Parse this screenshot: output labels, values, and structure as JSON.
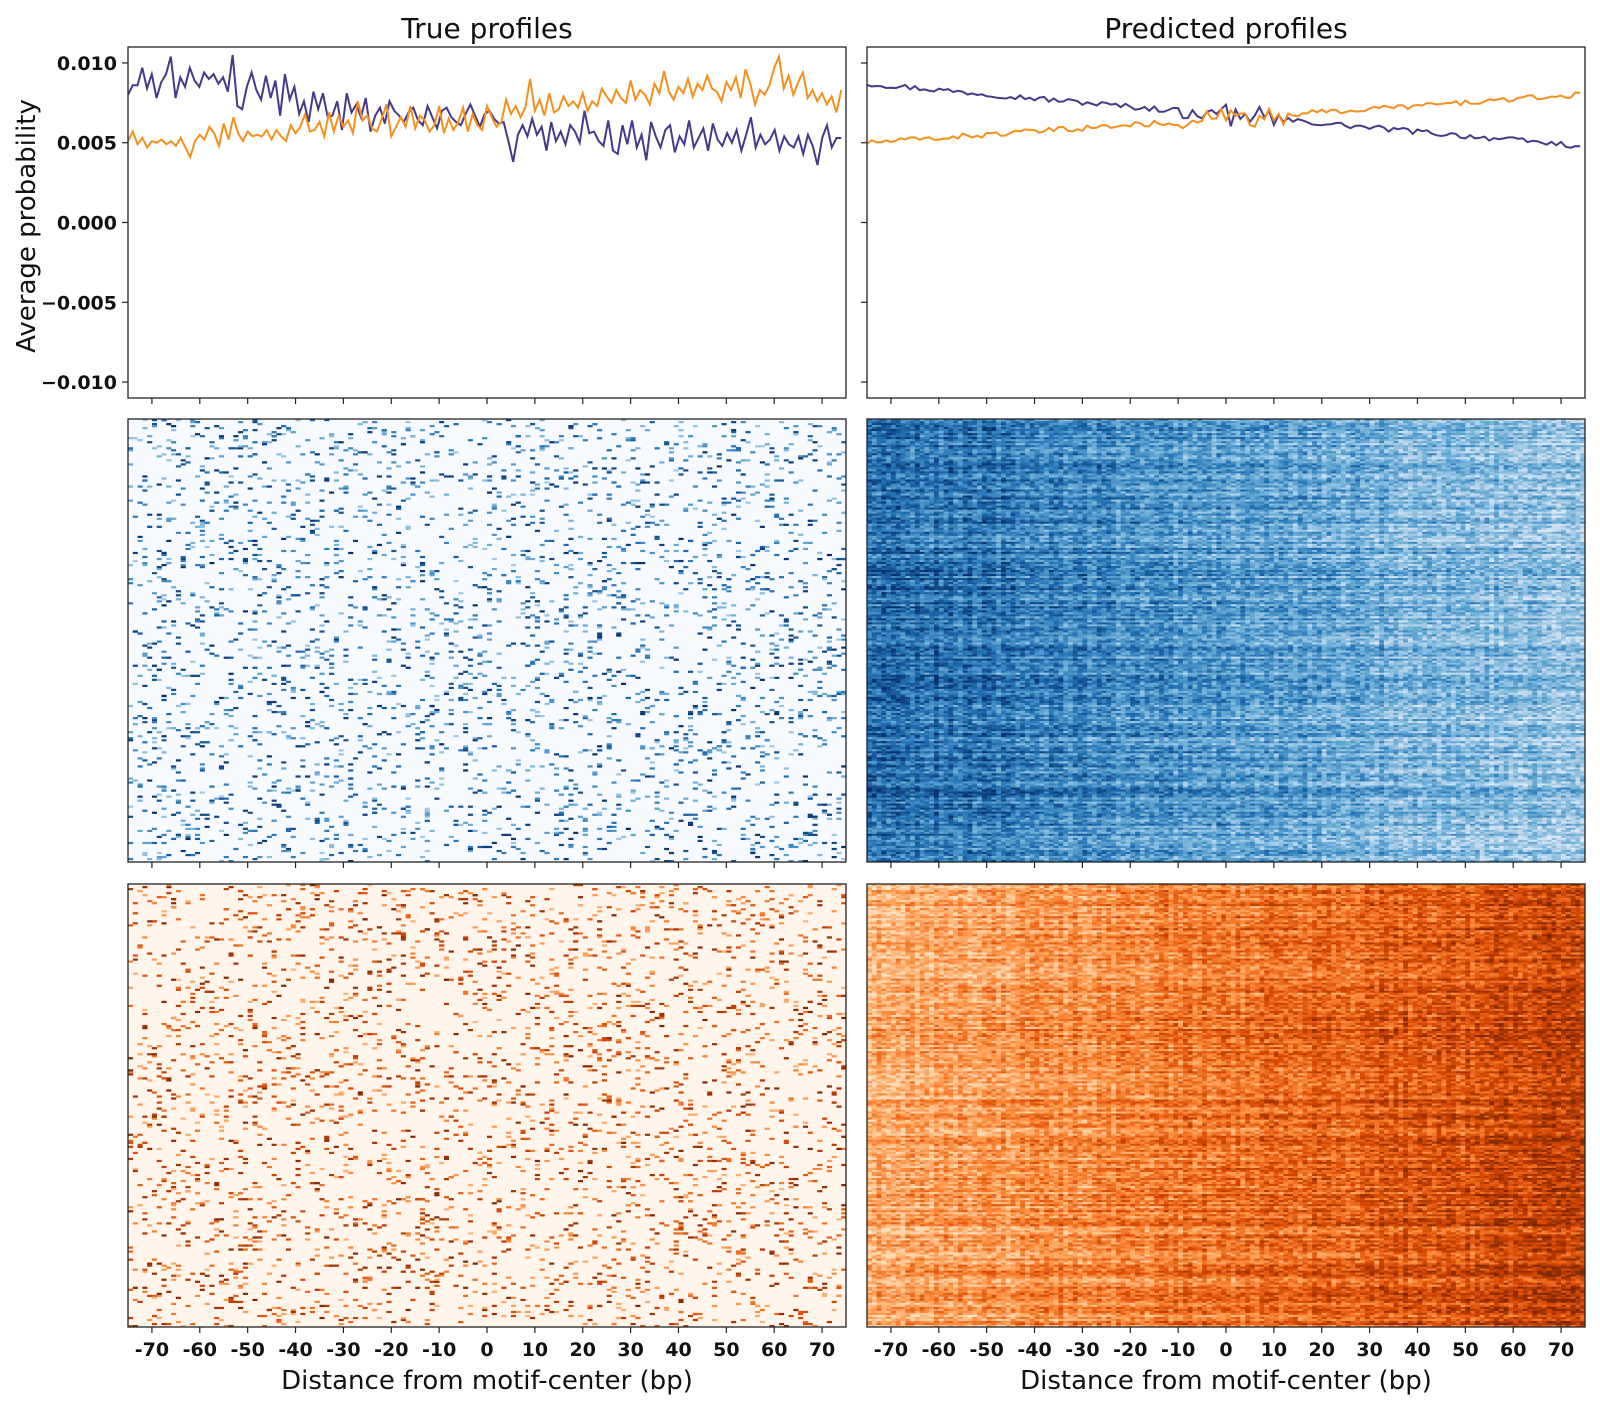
{
  "chart_data": [
    {
      "type": "line",
      "panel": "top-left",
      "title": "True profiles",
      "ylabel": "Average probability",
      "xlim": [
        -75,
        75
      ],
      "ylim": [
        -0.011,
        0.011
      ],
      "yticks": [
        0.01,
        0.005,
        0.0,
        -0.005,
        -0.01
      ],
      "ytick_labels": [
        "0.010",
        "0.005",
        "0.000",
        "−0.005",
        "−0.010"
      ],
      "x_start": -75,
      "series": [
        {
          "color": "#46388a",
          "values": [
            0.008,
            0.0086,
            0.0086,
            0.0097,
            0.0084,
            0.0093,
            0.0078,
            0.0088,
            0.0093,
            0.0104,
            0.0078,
            0.0091,
            0.0085,
            0.0097,
            0.0089,
            0.0085,
            0.0094,
            0.009,
            0.0093,
            0.0087,
            0.0091,
            0.0082,
            0.0105,
            0.0073,
            0.0071,
            0.0085,
            0.0094,
            0.0083,
            0.0077,
            0.0092,
            0.0078,
            0.0089,
            0.0067,
            0.0093,
            0.0077,
            0.0085,
            0.0068,
            0.0076,
            0.0063,
            0.0082,
            0.0071,
            0.0081,
            0.0066,
            0.0067,
            0.0076,
            0.0058,
            0.0081,
            0.0069,
            0.0074,
            0.0066,
            0.0078,
            0.0057,
            0.0067,
            0.0072,
            0.0062,
            0.0076,
            0.007,
            0.0067,
            0.0063,
            0.0069,
            0.0072,
            0.0064,
            0.0061,
            0.0073,
            0.0066,
            0.0059,
            0.007,
            0.0072,
            0.0066,
            0.0063,
            0.0061,
            0.0068,
            0.0074,
            0.0067,
            0.006,
            0.0068,
            0.007,
            0.0065,
            0.0062,
            0.0063,
            0.0051,
            0.0038,
            0.0055,
            0.0061,
            0.0054,
            0.0065,
            0.0055,
            0.006,
            0.0045,
            0.0063,
            0.0051,
            0.0057,
            0.0049,
            0.0061,
            0.0057,
            0.005,
            0.007,
            0.0056,
            0.0057,
            0.0051,
            0.0048,
            0.0064,
            0.0045,
            0.0043,
            0.0061,
            0.0049,
            0.0064,
            0.0047,
            0.0055,
            0.0039,
            0.0063,
            0.0054,
            0.0047,
            0.0058,
            0.0061,
            0.0044,
            0.0054,
            0.0049,
            0.0064,
            0.0047,
            0.0053,
            0.0059,
            0.0045,
            0.0062,
            0.0052,
            0.0048,
            0.0056,
            0.005,
            0.0058,
            0.0045,
            0.0055,
            0.0066,
            0.0047,
            0.0055,
            0.0049,
            0.0052,
            0.0058,
            0.0045,
            0.0054,
            0.0049,
            0.0047,
            0.0054,
            0.0043,
            0.0055,
            0.0048,
            0.0036,
            0.0053,
            0.0061,
            0.0047,
            0.0053,
            0.0053
          ]
        },
        {
          "color": "#f5901e",
          "values": [
            0.0051,
            0.0057,
            0.0049,
            0.0053,
            0.0047,
            0.0051,
            0.005,
            0.0052,
            0.0049,
            0.0051,
            0.0048,
            0.0053,
            0.0047,
            0.0041,
            0.0051,
            0.0055,
            0.0052,
            0.006,
            0.0056,
            0.0048,
            0.0062,
            0.0052,
            0.0066,
            0.0056,
            0.0051,
            0.0057,
            0.0054,
            0.0055,
            0.0054,
            0.0058,
            0.0052,
            0.0058,
            0.0054,
            0.0051,
            0.0061,
            0.0056,
            0.006,
            0.0068,
            0.0057,
            0.0058,
            0.0063,
            0.0054,
            0.0069,
            0.0057,
            0.0067,
            0.006,
            0.0064,
            0.0056,
            0.0076,
            0.0064,
            0.0067,
            0.0059,
            0.0057,
            0.0065,
            0.0074,
            0.0054,
            0.006,
            0.0066,
            0.006,
            0.0073,
            0.0059,
            0.0067,
            0.0064,
            0.0057,
            0.0061,
            0.0073,
            0.0056,
            0.0065,
            0.0058,
            0.0063,
            0.0072,
            0.0057,
            0.0068,
            0.0061,
            0.0058,
            0.0073,
            0.0066,
            0.006,
            0.0063,
            0.0077,
            0.0068,
            0.0073,
            0.0066,
            0.0072,
            0.009,
            0.007,
            0.0077,
            0.0067,
            0.0081,
            0.0069,
            0.0071,
            0.0079,
            0.0073,
            0.0076,
            0.0072,
            0.0081,
            0.007,
            0.0076,
            0.0073,
            0.0084,
            0.0079,
            0.0075,
            0.0083,
            0.0078,
            0.0075,
            0.0089,
            0.0077,
            0.0083,
            0.008,
            0.0074,
            0.0087,
            0.0081,
            0.0095,
            0.0082,
            0.0077,
            0.0085,
            0.0081,
            0.009,
            0.0079,
            0.0087,
            0.0083,
            0.0092,
            0.0084,
            0.0082,
            0.0076,
            0.0088,
            0.0083,
            0.0091,
            0.0078,
            0.0096,
            0.0087,
            0.0074,
            0.0083,
            0.008,
            0.0086,
            0.0097,
            0.0104,
            0.0084,
            0.0092,
            0.008,
            0.0088,
            0.0094,
            0.0078,
            0.0083,
            0.0076,
            0.0081,
            0.0074,
            0.0079,
            0.0069,
            0.0083
          ]
        }
      ]
    },
    {
      "type": "line",
      "panel": "top-right",
      "title": "Predicted profiles",
      "xlim": [
        -75,
        75
      ],
      "ylim": [
        -0.011,
        0.011
      ],
      "x_start": -75,
      "series": [
        {
          "color": "#46388a",
          "trend": {
            "start": 0.0087,
            "end": 0.0048
          }
        },
        {
          "color": "#f5901e",
          "trend": {
            "start": 0.005,
            "end": 0.008
          }
        }
      ]
    },
    {
      "type": "heatmap",
      "panel": "middle-left",
      "colormap": "Blues",
      "description": "per-region true profile, forward strand"
    },
    {
      "type": "heatmap",
      "panel": "middle-right",
      "colormap": "Blues",
      "description": "per-region predicted profile, forward strand"
    },
    {
      "type": "heatmap",
      "panel": "bottom-left",
      "colormap": "Oranges",
      "xlabel": "Distance from motif-center (bp)",
      "xticks": [
        -70,
        -60,
        -50,
        -40,
        -30,
        -20,
        -10,
        0,
        10,
        20,
        30,
        40,
        50,
        60,
        70
      ]
    },
    {
      "type": "heatmap",
      "panel": "bottom-right",
      "colormap": "Oranges",
      "xlabel": "Distance from motif-center (bp)",
      "xticks": [
        -70,
        -60,
        -50,
        -40,
        -30,
        -20,
        -10,
        0,
        10,
        20,
        30,
        40,
        50,
        60,
        70
      ]
    }
  ],
  "labels": {
    "title_left": "True profiles",
    "title_right": "Predicted profiles",
    "ylabel": "Average probability",
    "xlabel_left": "Distance from motif-center (bp)",
    "xlabel_right": "Distance from motif-center (bp)"
  },
  "colors": {
    "line_dark": "#46388a",
    "line_orange": "#f5901e",
    "blues_low": "#f4f9fe",
    "blues_high": "#08306b",
    "oranges_low": "#fff5eb",
    "oranges_high": "#7f2704"
  }
}
